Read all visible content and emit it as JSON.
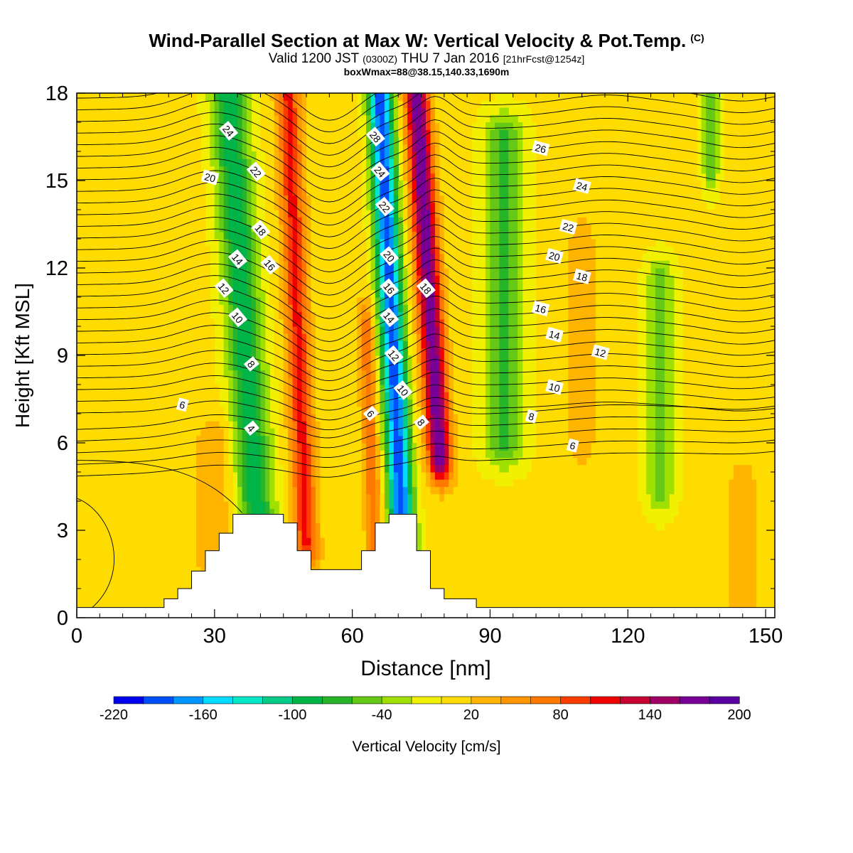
{
  "title": {
    "main": "Wind-Parallel Section at Max W: Vertical Velocity & Pot.Temp.",
    "copyright": "(C)",
    "valid_a": "Valid 1200 JST",
    "valid_b": "(0300Z)",
    "valid_c": "THU 7 Jan 2016",
    "valid_d": "[21hrFcst@1254z]",
    "sub": "boxWmax=88@38.15,140.33,1690m"
  },
  "chart_data": {
    "type": "heatmap",
    "xlabel": "Distance [nm]",
    "ylabel": "Height [Kft MSL]",
    "xlim": [
      0,
      152
    ],
    "ylim": [
      0,
      18
    ],
    "xticks": [
      0,
      30,
      60,
      90,
      120,
      150
    ],
    "yticks": [
      0,
      3,
      6,
      9,
      12,
      15,
      18
    ],
    "colorbar": {
      "label": "Vertical Velocity [cm/s]",
      "min": -220,
      "max": 200,
      "step": 20,
      "tick_labels": [
        -220,
        -160,
        -100,
        -40,
        20,
        80,
        140,
        200
      ],
      "colors": [
        "#0000f0",
        "#0050ff",
        "#0096ff",
        "#00dcff",
        "#00e8c8",
        "#00cc88",
        "#00b448",
        "#28b428",
        "#64c814",
        "#a0e000",
        "#f0f000",
        "#ffdc00",
        "#ffb400",
        "#ff9600",
        "#ff7800",
        "#ff3c00",
        "#f00000",
        "#c80032",
        "#a00064",
        "#780096",
        "#5a00a0"
      ]
    },
    "terrain_kft": [
      [
        0,
        0.35
      ],
      [
        19,
        0.35
      ],
      [
        19,
        0.65
      ],
      [
        22,
        0.65
      ],
      [
        22,
        1.0
      ],
      [
        25,
        1.0
      ],
      [
        25,
        1.6
      ],
      [
        28,
        1.6
      ],
      [
        28,
        2.3
      ],
      [
        31,
        2.3
      ],
      [
        31,
        2.9
      ],
      [
        34,
        2.9
      ],
      [
        34,
        3.55
      ],
      [
        45,
        3.55
      ],
      [
        45,
        3.25
      ],
      [
        48,
        3.25
      ],
      [
        48,
        2.3
      ],
      [
        51,
        2.3
      ],
      [
        51,
        1.65
      ],
      [
        62,
        1.65
      ],
      [
        62,
        2.3
      ],
      [
        65,
        2.3
      ],
      [
        65,
        3.25
      ],
      [
        68,
        3.25
      ],
      [
        68,
        3.55
      ],
      [
        74,
        3.55
      ],
      [
        74,
        2.3
      ],
      [
        77,
        2.3
      ],
      [
        77,
        1.0
      ],
      [
        80,
        1.0
      ],
      [
        80,
        0.65
      ],
      [
        87,
        0.65
      ],
      [
        87,
        0.35
      ],
      [
        152,
        0.35
      ],
      [
        152,
        0
      ],
      [
        0,
        0
      ]
    ],
    "vertical_velocity_features": [
      {
        "kind": "downdraft",
        "x": 40,
        "y0": 1.5,
        "y1": 18,
        "width_nm": 9,
        "lean_nm": -7,
        "peak_cms": -100
      },
      {
        "kind": "updraft",
        "x": 50,
        "y0": 2.5,
        "y1": 18,
        "width_nm": 6,
        "lean_nm": -4,
        "peak_cms": 100
      },
      {
        "kind": "updraft",
        "x": 65,
        "y0": 1.5,
        "y1": 10,
        "width_nm": 4,
        "lean_nm": -2,
        "peak_cms": 70
      },
      {
        "kind": "downdraft",
        "x": 71,
        "y0": 2.5,
        "y1": 18,
        "width_nm": 6,
        "lean_nm": -5,
        "peak_cms": -200
      },
      {
        "kind": "updraft",
        "x": 79,
        "y0": 5.5,
        "y1": 18,
        "width_nm": 6,
        "lean_nm": -5,
        "peak_cms": 175
      },
      {
        "kind": "downdraft",
        "x": 93,
        "y0": 6,
        "y1": 16.5,
        "width_nm": 10,
        "lean_nm": 0,
        "peak_cms": -70
      },
      {
        "kind": "downdraft",
        "x": 127,
        "y0": 4.5,
        "y1": 11.5,
        "width_nm": 7,
        "lean_nm": 0,
        "peak_cms": -55
      },
      {
        "kind": "updraft",
        "x": 110,
        "y0": 6,
        "y1": 13,
        "width_nm": 7,
        "lean_nm": 0,
        "peak_cms": 30
      },
      {
        "kind": "updraft",
        "x": 30,
        "y0": 2,
        "y1": 6,
        "width_nm": 10,
        "lean_nm": 0,
        "peak_cms": 30
      },
      {
        "kind": "updraft",
        "x": 145,
        "y0": 0.5,
        "y1": 4.5,
        "width_nm": 7,
        "lean_nm": 0,
        "peak_cms": 35
      },
      {
        "kind": "downdraft",
        "x": 138,
        "y0": 15.5,
        "y1": 18,
        "width_nm": 4,
        "lean_nm": 0,
        "peak_cms": -60
      }
    ],
    "theta_contour_labels": [
      {
        "text": "24",
        "x": 33,
        "y": 16.7
      },
      {
        "text": "20",
        "x": 29,
        "y": 15.1
      },
      {
        "text": "22",
        "x": 39,
        "y": 15.3
      },
      {
        "text": "18",
        "x": 40,
        "y": 13.3
      },
      {
        "text": "14",
        "x": 35,
        "y": 12.3
      },
      {
        "text": "16",
        "x": 42,
        "y": 12.1
      },
      {
        "text": "12",
        "x": 32,
        "y": 11.3
      },
      {
        "text": "10",
        "x": 35,
        "y": 10.3
      },
      {
        "text": "8",
        "x": 38,
        "y": 8.7
      },
      {
        "text": "6",
        "x": 23,
        "y": 7.3
      },
      {
        "text": "4",
        "x": 38,
        "y": 6.5
      },
      {
        "text": "28",
        "x": 65,
        "y": 16.5
      },
      {
        "text": "24",
        "x": 66,
        "y": 15.3
      },
      {
        "text": "22",
        "x": 67,
        "y": 14.1
      },
      {
        "text": "20",
        "x": 68,
        "y": 12.4
      },
      {
        "text": "16",
        "x": 68,
        "y": 11.3
      },
      {
        "text": "14",
        "x": 68,
        "y": 10.3
      },
      {
        "text": "12",
        "x": 69,
        "y": 9
      },
      {
        "text": "10",
        "x": 71,
        "y": 7.8
      },
      {
        "text": "6",
        "x": 64,
        "y": 7
      },
      {
        "text": "8",
        "x": 75,
        "y": 6.7
      },
      {
        "text": "18",
        "x": 76,
        "y": 11.3
      },
      {
        "text": "26",
        "x": 101,
        "y": 16.1
      },
      {
        "text": "24",
        "x": 110,
        "y": 14.8
      },
      {
        "text": "22",
        "x": 107,
        "y": 13.4
      },
      {
        "text": "20",
        "x": 104,
        "y": 12.4
      },
      {
        "text": "18",
        "x": 110,
        "y": 11.7
      },
      {
        "text": "16",
        "x": 101,
        "y": 10.6
      },
      {
        "text": "14",
        "x": 104,
        "y": 9.7
      },
      {
        "text": "12",
        "x": 114,
        "y": 9.1
      },
      {
        "text": "10",
        "x": 104,
        "y": 7.9
      },
      {
        "text": "8",
        "x": 99,
        "y": 6.9
      },
      {
        "text": "6",
        "x": 108,
        "y": 5.9
      }
    ]
  }
}
